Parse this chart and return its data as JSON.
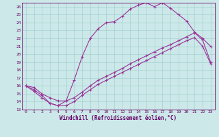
{
  "xlabel": "Windchill (Refroidissement éolien,°C)",
  "bg_color": "#cce8e8",
  "line_color": "#993399",
  "grid_color": "#99cccc",
  "xlim": [
    -0.5,
    23.5
  ],
  "ylim": [
    13,
    26.5
  ],
  "xticks": [
    0,
    1,
    2,
    3,
    4,
    5,
    6,
    7,
    8,
    9,
    10,
    11,
    12,
    13,
    14,
    15,
    16,
    17,
    18,
    19,
    20,
    21,
    22,
    23
  ],
  "yticks": [
    13,
    14,
    15,
    16,
    17,
    18,
    19,
    20,
    21,
    22,
    23,
    24,
    25,
    26
  ],
  "curve1_x": [
    0,
    1,
    2,
    3,
    4,
    5,
    6,
    7,
    8,
    9,
    10,
    11,
    12,
    13,
    14,
    15,
    16,
    17,
    18,
    19,
    20,
    21,
    22,
    23
  ],
  "curve1_y": [
    16.0,
    15.5,
    14.8,
    13.8,
    13.5,
    14.1,
    16.7,
    19.7,
    22.0,
    23.2,
    24.0,
    24.1,
    24.8,
    25.7,
    26.2,
    26.5,
    26.0,
    26.5,
    25.8,
    25.0,
    24.2,
    22.8,
    22.0,
    21.0
  ],
  "curve2_x": [
    0,
    1,
    2,
    3,
    4,
    5,
    6,
    7,
    8,
    9,
    10,
    11,
    12,
    13,
    14,
    15,
    16,
    17,
    18,
    19,
    20,
    21,
    22,
    23
  ],
  "curve2_y": [
    16.0,
    15.8,
    15.0,
    14.5,
    14.1,
    14.1,
    14.5,
    15.2,
    16.0,
    16.7,
    17.2,
    17.7,
    18.2,
    18.8,
    19.3,
    19.8,
    20.3,
    20.8,
    21.2,
    21.7,
    22.2,
    22.7,
    21.8,
    19.0
  ],
  "curve3_x": [
    0,
    1,
    2,
    3,
    4,
    5,
    6,
    7,
    8,
    9,
    10,
    11,
    12,
    13,
    14,
    15,
    16,
    17,
    18,
    19,
    20,
    21,
    22,
    23
  ],
  "curve3_y": [
    16.0,
    15.3,
    14.5,
    13.8,
    13.5,
    13.5,
    14.0,
    14.8,
    15.5,
    16.2,
    16.7,
    17.2,
    17.7,
    18.2,
    18.7,
    19.2,
    19.7,
    20.2,
    20.7,
    21.2,
    21.7,
    22.1,
    21.0,
    18.8
  ],
  "marker": "+",
  "markersize": 3,
  "linewidth": 0.8,
  "tick_fontsize": 4.5,
  "xlabel_fontsize": 5.5
}
